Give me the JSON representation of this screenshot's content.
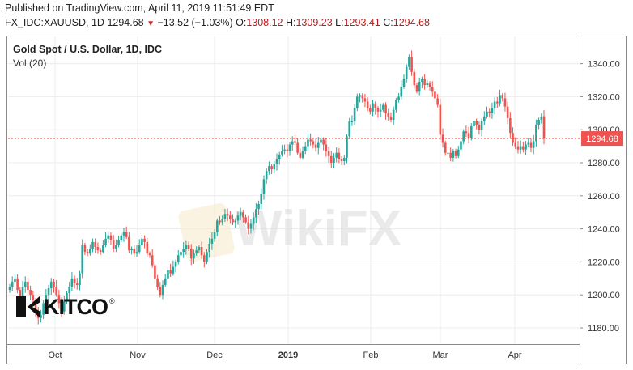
{
  "header": {
    "published": "Published on TradingView.com, April 11, 2019 11:51:49 EDT",
    "symbol": "FX_IDC:XAUUSD, 1D",
    "last": "1294.68",
    "change": "−13.52 (−1.03%)",
    "open_label": "O:",
    "open": "1308.12",
    "high_label": "H:",
    "high": "1309.23",
    "low_label": "L:",
    "low": "1293.41",
    "close_label": "C:",
    "close": "1294.68"
  },
  "plot": {
    "title": "Gold Spot / U.S. Dollar, 1D, IDC",
    "volume_label": "Vol (20)"
  },
  "branding": {
    "logo_text": "KITCO",
    "logo_mark": "®",
    "watermark": "WikiFX"
  },
  "colors": {
    "up": "#26a69a",
    "down": "#ef5350",
    "price_line": "#e53935",
    "price_tag": "#ef5350"
  },
  "chart_data": {
    "type": "candlestick",
    "title": "Gold Spot / U.S. Dollar, 1D, IDC",
    "ylim": [
      1170,
      1350
    ],
    "y_ticks": [
      "1180.00",
      "1200.00",
      "1220.00",
      "1240.00",
      "1260.00",
      "1280.00",
      "1300.00",
      "1320.00",
      "1340.00"
    ],
    "x_ticks": [
      "Oct",
      "Nov",
      "Dec",
      "2019",
      "Feb",
      "Mar",
      "Apr"
    ],
    "last_price_label": "1294.68",
    "grid": true,
    "closes": [
      1205,
      1208,
      1210,
      1203,
      1198,
      1205,
      1208,
      1203,
      1200,
      1197,
      1190,
      1186,
      1188,
      1195,
      1200,
      1204,
      1208,
      1205,
      1200,
      1195,
      1190,
      1196,
      1201,
      1205,
      1210,
      1207,
      1206,
      1213,
      1230,
      1226,
      1225,
      1228,
      1232,
      1229,
      1227,
      1226,
      1230,
      1234,
      1236,
      1233,
      1228,
      1230,
      1233,
      1236,
      1238,
      1235,
      1227,
      1228,
      1225,
      1226,
      1230,
      1234,
      1232,
      1225,
      1224,
      1218,
      1210,
      1205,
      1200,
      1206,
      1210,
      1215,
      1213,
      1217,
      1220,
      1224,
      1226,
      1228,
      1230,
      1228,
      1222,
      1225,
      1227,
      1229,
      1224,
      1220,
      1226,
      1231,
      1234,
      1238,
      1245,
      1244,
      1246,
      1249,
      1248,
      1246,
      1244,
      1245,
      1248,
      1250,
      1247,
      1244,
      1240,
      1243,
      1247,
      1252,
      1255,
      1261,
      1270,
      1275,
      1278,
      1276,
      1279,
      1282,
      1285,
      1287,
      1288,
      1287,
      1291,
      1293,
      1292,
      1286,
      1283,
      1287,
      1290,
      1294,
      1293,
      1291,
      1289,
      1292,
      1294,
      1291,
      1287,
      1284,
      1280,
      1283,
      1286,
      1282,
      1281,
      1283,
      1296,
      1305,
      1305,
      1313,
      1320,
      1321,
      1319,
      1317,
      1313,
      1311,
      1316,
      1313,
      1311,
      1312,
      1315,
      1310,
      1308,
      1306,
      1312,
      1318,
      1320,
      1326,
      1331,
      1338,
      1344,
      1335,
      1327,
      1323,
      1329,
      1331,
      1327,
      1328,
      1326,
      1323,
      1319,
      1315,
      1297,
      1292,
      1286,
      1286,
      1283,
      1287,
      1284,
      1288,
      1293,
      1299,
      1298,
      1295,
      1302,
      1305,
      1303,
      1300,
      1305,
      1308,
      1311,
      1310,
      1313,
      1317,
      1316,
      1321,
      1319,
      1314,
      1307,
      1298,
      1292,
      1290,
      1288,
      1290,
      1288,
      1291,
      1292,
      1289,
      1293,
      1303,
      1306,
      1308,
      1294.68
    ]
  }
}
